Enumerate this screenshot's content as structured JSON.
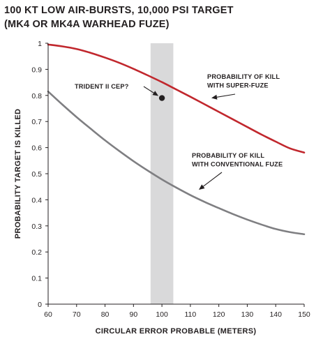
{
  "chart_data": {
    "type": "line",
    "title_line1": "100 KT LOW AIR-BURSTS, 10,000 PSI TARGET",
    "title_line2": "(MK4 OR MK4A WARHEAD FUZE)",
    "xlabel": "CIRCULAR ERROR PROBABLE (METERS)",
    "ylabel": "PROBABILITY TARGET IS KILLED",
    "xlim": [
      60,
      150
    ],
    "ylim": [
      0,
      1
    ],
    "x_ticks": [
      60,
      70,
      80,
      90,
      100,
      110,
      120,
      130,
      140,
      150
    ],
    "y_ticks": [
      0,
      0.1,
      0.2,
      0.3,
      0.4,
      0.5,
      0.6,
      0.7,
      0.8,
      0.9,
      1
    ],
    "y_tick_labels": [
      "0",
      "0.1",
      "0.2",
      "0.3",
      "0.4",
      "0.5",
      "0.6",
      "0.7",
      "0.8",
      "0.9",
      "1"
    ],
    "shaded_band": {
      "x_from": 96,
      "x_to": 104,
      "color": "#d9d9da"
    },
    "series": [
      {
        "name": "PROBABILITY OF KILL WITH SUPER-FUZE",
        "label_line1": "PROBABILITY OF KILL",
        "label_line2": "WITH SUPER-FUZE",
        "color": "#c1272d",
        "x": [
          60,
          65,
          70,
          75,
          80,
          85,
          90,
          95,
          100,
          105,
          110,
          115,
          120,
          125,
          130,
          135,
          140,
          145,
          150
        ],
        "y": [
          0.995,
          0.988,
          0.978,
          0.963,
          0.945,
          0.925,
          0.902,
          0.877,
          0.851,
          0.823,
          0.795,
          0.766,
          0.737,
          0.708,
          0.679,
          0.65,
          0.623,
          0.597,
          0.581
        ]
      },
      {
        "name": "PROBABILITY OF KILL WITH CONVENTIONAL FUZE",
        "label_line1": "PROBABILITY OF KILL",
        "label_line2": "WITH CONVENTIONAL FUZE",
        "color": "#7f7f82",
        "x": [
          60,
          65,
          70,
          75,
          80,
          85,
          90,
          95,
          100,
          105,
          110,
          115,
          120,
          125,
          130,
          135,
          140,
          145,
          150
        ],
        "y": [
          0.815,
          0.765,
          0.717,
          0.672,
          0.628,
          0.587,
          0.548,
          0.512,
          0.478,
          0.447,
          0.418,
          0.392,
          0.368,
          0.345,
          0.324,
          0.305,
          0.288,
          0.276,
          0.268
        ]
      }
    ],
    "points": [
      {
        "label": "TRIDENT II CEP?",
        "x": 100,
        "y": 0.79,
        "color": "#231f20"
      }
    ]
  }
}
